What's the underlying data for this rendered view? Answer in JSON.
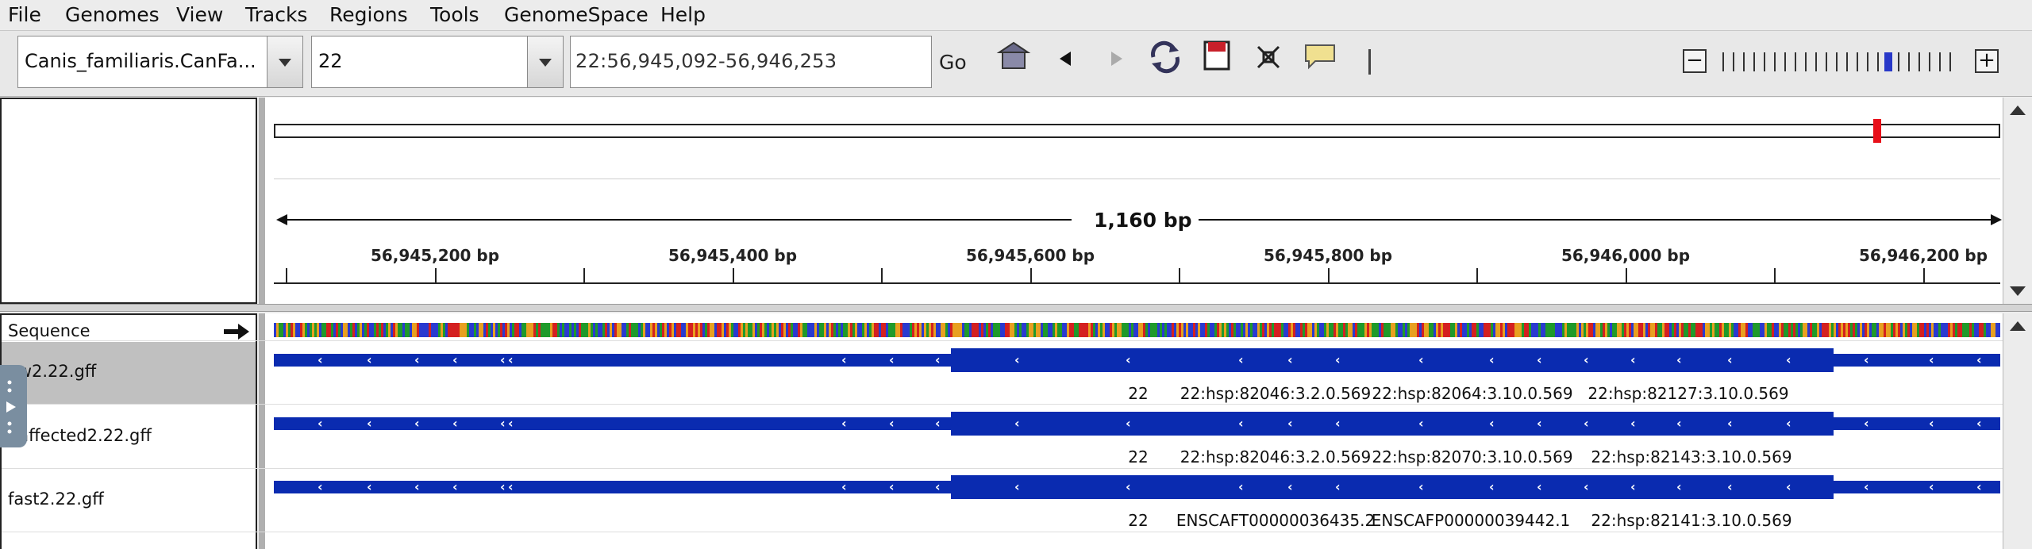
{
  "menu": {
    "file": "File",
    "genomes": "Genomes",
    "view": "View",
    "tracks": "Tracks",
    "regions": "Regions",
    "tools": "Tools",
    "genomespace": "GenomeSpace",
    "help": "Help"
  },
  "toolbar": {
    "genome": "Canis_familiaris.CanFa...",
    "chromosome": "22",
    "locus": "22:56,945,092-56,946,253",
    "go_label": "Go"
  },
  "ruler": {
    "span_label": "1,160 bp",
    "tick_labels": [
      "56,945,200 bp",
      "56,945,400 bp",
      "56,945,600 bp",
      "56,945,800 bp",
      "56,946,000 bp",
      "56,946,200 bp"
    ]
  },
  "tracks": {
    "sequence_label": "Sequence",
    "rows": [
      {
        "name": "ow2.22.gff",
        "labels": [
          "22",
          "22:hsp:82046:3.2.0.569",
          "22:hsp:82064:3.10.0.569",
          "22:hsp:82127:3.10.0.569"
        ]
      },
      {
        "name": "naffected2.22.gff",
        "labels": [
          "22",
          "22:hsp:82046:3.2.0.569",
          "22:hsp:82070:3.10.0.569",
          "22:hsp:82143:3.10.0.569"
        ]
      },
      {
        "name": "fast2.22.gff",
        "labels": [
          "22",
          "ENSCAFT00000036435.2",
          "ENSCAFP00000039442.1",
          "22:hsp:82141:3.10.0.569"
        ]
      }
    ]
  },
  "colors": {
    "feature": "#0a2bb0",
    "marker": "#e8101a",
    "selected_row": "#c0c0c0"
  },
  "icons": {
    "home": "home-icon",
    "back": "back-arrow-icon",
    "forward": "forward-arrow-icon",
    "refresh": "refresh-icon",
    "region": "region-of-interest-icon",
    "resize": "fit-window-icon",
    "popup": "popup-text-icon",
    "sequence_strand": "strand-arrow-icon"
  }
}
